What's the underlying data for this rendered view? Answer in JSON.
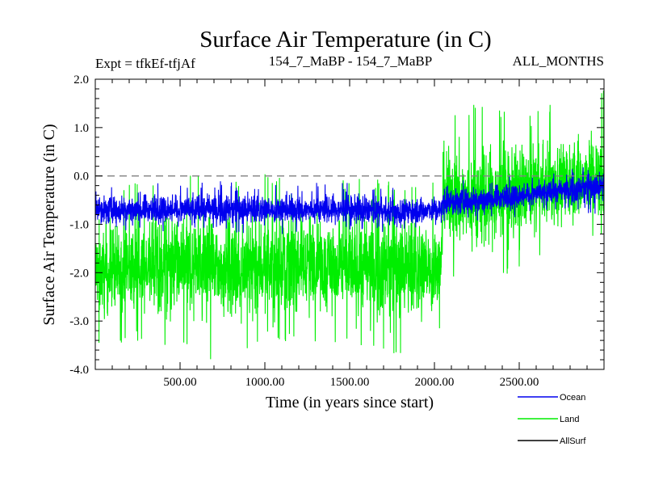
{
  "chart_data": {
    "type": "line",
    "title": "Surface Air Temperature (in C)",
    "subtitle_left": "Expt = tfkEf-tfjAf",
    "subtitle_center": "154_7_MaBP - 154_7_MaBP",
    "subtitle_right": "ALL_MONTHS",
    "xlabel": "Time (in years since start)",
    "ylabel": "Surface Air Temperature (in C)",
    "xlim": [
      0,
      3000
    ],
    "ylim": [
      -4.0,
      2.0
    ],
    "x_ticks": [
      500,
      1000,
      1500,
      2000,
      2500
    ],
    "x_tick_labels": [
      "500.00",
      "1000.00",
      "1500.00",
      "2000.00",
      "2500.00"
    ],
    "y_ticks": [
      -4,
      -3,
      -2,
      -1,
      0,
      1,
      2
    ],
    "y_tick_labels": [
      "-4.0",
      "-3.0",
      "-2.0",
      "-1.0",
      "0.0",
      "1.0",
      "2.0"
    ],
    "reference_line": {
      "y": 0.0,
      "style": "dashed",
      "color": "#808080"
    },
    "grid": false,
    "legend_position": "bottom-right",
    "series": [
      {
        "name": "Land",
        "color": "#00ee00",
        "x": [
          0,
          250,
          500,
          750,
          1000,
          1250,
          1500,
          1750,
          2000,
          2040,
          2050,
          2250,
          2500,
          2750,
          3000
        ],
        "mean": [
          -2.0,
          -1.9,
          -1.9,
          -1.9,
          -1.9,
          -1.8,
          -1.9,
          -1.9,
          -1.9,
          -1.9,
          -0.4,
          -0.5,
          -0.3,
          -0.2,
          -0.1
        ],
        "min": [
          -3.6,
          -3.5,
          -3.6,
          -3.9,
          -3.5,
          -3.4,
          -3.6,
          -3.7,
          -3.6,
          -3.0,
          -2.0,
          -2.4,
          -2.0,
          -1.5,
          -1.4
        ],
        "max": [
          -0.2,
          -0.1,
          0.15,
          -0.1,
          0.05,
          -0.05,
          0.0,
          -0.1,
          -0.1,
          -0.8,
          1.2,
          1.5,
          1.3,
          1.6,
          1.9
        ]
      },
      {
        "name": "Ocean",
        "color": "#0000ee",
        "x": [
          0,
          250,
          500,
          750,
          1000,
          1250,
          1500,
          1750,
          2000,
          2040,
          2050,
          2250,
          2500,
          2750,
          3000
        ],
        "mean": [
          -0.7,
          -0.7,
          -0.7,
          -0.7,
          -0.7,
          -0.7,
          -0.7,
          -0.75,
          -0.7,
          -0.7,
          -0.55,
          -0.5,
          -0.4,
          -0.3,
          -0.2
        ],
        "min": [
          -1.2,
          -1.2,
          -1.2,
          -1.2,
          -1.2,
          -1.2,
          -1.2,
          -1.3,
          -1.2,
          -1.2,
          -1.0,
          -1.0,
          -0.9,
          -0.8,
          -0.8
        ],
        "max": [
          -0.2,
          -0.15,
          -0.1,
          -0.1,
          -0.15,
          -0.15,
          -0.1,
          -0.2,
          -0.2,
          -0.2,
          -0.1,
          0.0,
          0.05,
          0.1,
          0.3
        ]
      },
      {
        "name": "AllSurf",
        "color": "#000000",
        "x": [],
        "values": []
      }
    ],
    "legend": [
      {
        "name": "Ocean",
        "color": "#0000ee"
      },
      {
        "name": "Land",
        "color": "#00ee00"
      },
      {
        "name": "AllSurf",
        "color": "#000000"
      }
    ]
  }
}
